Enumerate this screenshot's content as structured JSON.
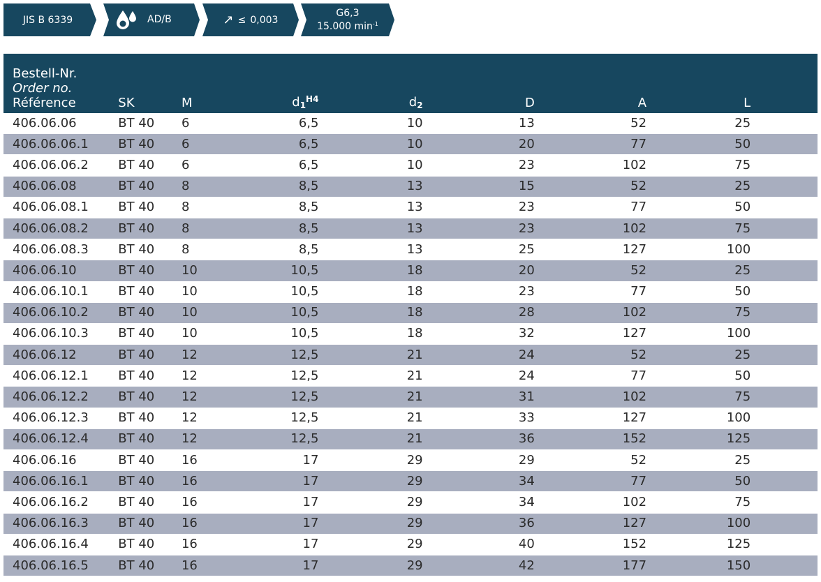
{
  "badges": {
    "standard": "JIS B 6339",
    "coolant": "AD/B",
    "runout_value": "0,003",
    "runout_symbol": "≤",
    "balance_grade": "G6,3",
    "speed": "15.000 min",
    "speed_exp": "-1"
  },
  "table": {
    "headers": {
      "ref_de": "Bestell-Nr.",
      "ref_en": "Order no.",
      "ref_fr": "Référence",
      "sk": "SK",
      "m": "M",
      "d1": "d",
      "d1_sub": "1",
      "d1_sup": "H4",
      "d2": "d",
      "d2_sub": "2",
      "D": "D",
      "A": "A",
      "L": "L"
    },
    "rows": [
      {
        "ref": "406.06.06",
        "sk": "BT 40",
        "m": "6",
        "d1": "6,5",
        "d2": "10",
        "D": "13",
        "A": "52",
        "L": "25"
      },
      {
        "ref": "406.06.06.1",
        "sk": "BT 40",
        "m": "6",
        "d1": "6,5",
        "d2": "10",
        "D": "20",
        "A": "77",
        "L": "50"
      },
      {
        "ref": "406.06.06.2",
        "sk": "BT 40",
        "m": "6",
        "d1": "6,5",
        "d2": "10",
        "D": "23",
        "A": "102",
        "L": "75"
      },
      {
        "ref": "406.06.08",
        "sk": "BT 40",
        "m": "8",
        "d1": "8,5",
        "d2": "13",
        "D": "15",
        "A": "52",
        "L": "25"
      },
      {
        "ref": "406.06.08.1",
        "sk": "BT 40",
        "m": "8",
        "d1": "8,5",
        "d2": "13",
        "D": "23",
        "A": "77",
        "L": "50"
      },
      {
        "ref": "406.06.08.2",
        "sk": "BT 40",
        "m": "8",
        "d1": "8,5",
        "d2": "13",
        "D": "23",
        "A": "102",
        "L": "75"
      },
      {
        "ref": "406.06.08.3",
        "sk": "BT 40",
        "m": "8",
        "d1": "8,5",
        "d2": "13",
        "D": "25",
        "A": "127",
        "L": "100"
      },
      {
        "ref": "406.06.10",
        "sk": "BT 40",
        "m": "10",
        "d1": "10,5",
        "d2": "18",
        "D": "20",
        "A": "52",
        "L": "25"
      },
      {
        "ref": "406.06.10.1",
        "sk": "BT 40",
        "m": "10",
        "d1": "10,5",
        "d2": "18",
        "D": "23",
        "A": "77",
        "L": "50"
      },
      {
        "ref": "406.06.10.2",
        "sk": "BT 40",
        "m": "10",
        "d1": "10,5",
        "d2": "18",
        "D": "28",
        "A": "102",
        "L": "75"
      },
      {
        "ref": "406.06.10.3",
        "sk": "BT 40",
        "m": "10",
        "d1": "10,5",
        "d2": "18",
        "D": "32",
        "A": "127",
        "L": "100"
      },
      {
        "ref": "406.06.12",
        "sk": "BT 40",
        "m": "12",
        "d1": "12,5",
        "d2": "21",
        "D": "24",
        "A": "52",
        "L": "25"
      },
      {
        "ref": "406.06.12.1",
        "sk": "BT 40",
        "m": "12",
        "d1": "12,5",
        "d2": "21",
        "D": "24",
        "A": "77",
        "L": "50"
      },
      {
        "ref": "406.06.12.2",
        "sk": "BT 40",
        "m": "12",
        "d1": "12,5",
        "d2": "21",
        "D": "31",
        "A": "102",
        "L": "75"
      },
      {
        "ref": "406.06.12.3",
        "sk": "BT 40",
        "m": "12",
        "d1": "12,5",
        "d2": "21",
        "D": "33",
        "A": "127",
        "L": "100"
      },
      {
        "ref": "406.06.12.4",
        "sk": "BT 40",
        "m": "12",
        "d1": "12,5",
        "d2": "21",
        "D": "36",
        "A": "152",
        "L": "125"
      },
      {
        "ref": "406.06.16",
        "sk": "BT 40",
        "m": "16",
        "d1": "17",
        "d2": "29",
        "D": "29",
        "A": "52",
        "L": "25"
      },
      {
        "ref": "406.06.16.1",
        "sk": "BT 40",
        "m": "16",
        "d1": "17",
        "d2": "29",
        "D": "34",
        "A": "77",
        "L": "50"
      },
      {
        "ref": "406.06.16.2",
        "sk": "BT 40",
        "m": "16",
        "d1": "17",
        "d2": "29",
        "D": "34",
        "A": "102",
        "L": "75"
      },
      {
        "ref": "406.06.16.3",
        "sk": "BT 40",
        "m": "16",
        "d1": "17",
        "d2": "29",
        "D": "36",
        "A": "127",
        "L": "100"
      },
      {
        "ref": "406.06.16.4",
        "sk": "BT 40",
        "m": "16",
        "d1": "17",
        "d2": "29",
        "D": "40",
        "A": "152",
        "L": "125"
      },
      {
        "ref": "406.06.16.5",
        "sk": "BT 40",
        "m": "16",
        "d1": "17",
        "d2": "29",
        "D": "42",
        "A": "177",
        "L": "150"
      }
    ]
  },
  "icons": {
    "coolant": "coolant-drops-icon",
    "runout": "runout-arrow-icon"
  },
  "colors": {
    "header_bg": "#17475f",
    "stripe_bg": "#a8aebf",
    "text": "#2b2b2b"
  }
}
